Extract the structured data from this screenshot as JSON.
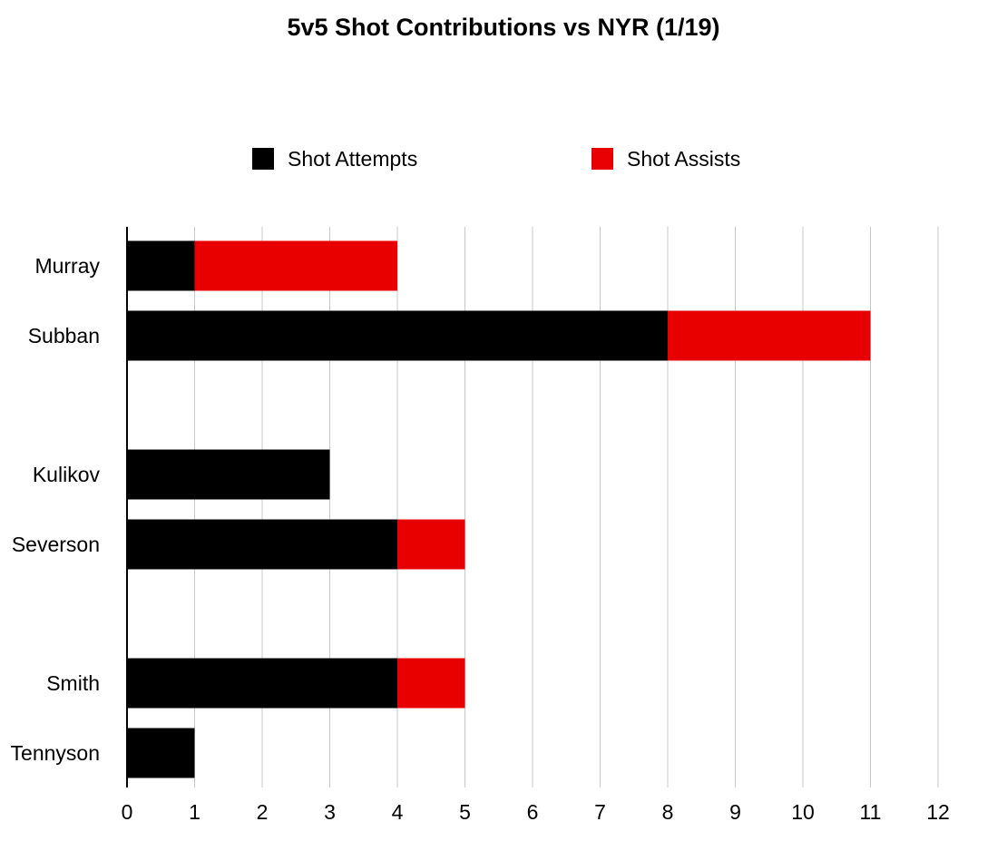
{
  "chart_data": {
    "type": "bar",
    "orientation": "horizontal",
    "stacked": true,
    "title": "5v5 Shot Contributions vs NYR (1/19)",
    "xlabel": "",
    "ylabel": "",
    "xlim": [
      0,
      12
    ],
    "x_ticks": [
      "0",
      "1",
      "2",
      "3",
      "4",
      "5",
      "6",
      "7",
      "8",
      "9",
      "10",
      "11",
      "12"
    ],
    "grid": true,
    "legend_position": "top",
    "categories": [
      "Murray",
      "Subban",
      "Kulikov",
      "Severson",
      "Smith",
      "Tennyson"
    ],
    "series": [
      {
        "name": "Shot Attempts",
        "color": "#000000",
        "values": [
          1,
          8,
          3,
          4,
          4,
          1
        ]
      },
      {
        "name": "Shot Assists",
        "color": "#e80000",
        "values": [
          3,
          3,
          0,
          1,
          1,
          0
        ]
      }
    ]
  }
}
